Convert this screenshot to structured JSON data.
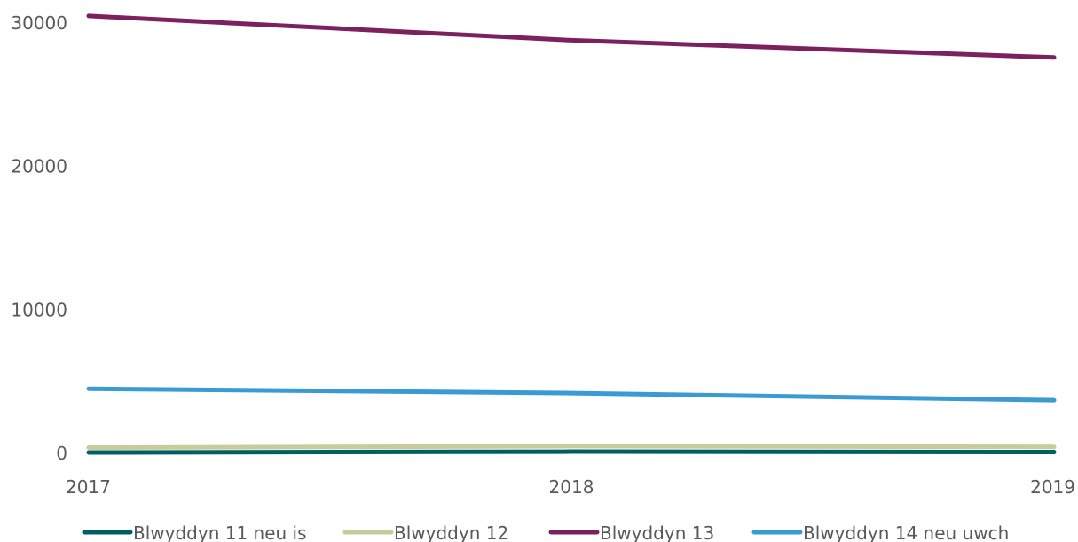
{
  "chart_data": {
    "type": "line",
    "title": "",
    "xlabel": "",
    "ylabel": "",
    "x": [
      "2017",
      "2018",
      "2019"
    ],
    "ylim": [
      0,
      30000
    ],
    "yticks": [
      "0",
      "10000",
      "20000",
      "30000"
    ],
    "grid": false,
    "legend_position": "bottom",
    "series": [
      {
        "name": "Blwyddyn 11 neu is",
        "color": "#005f62",
        "values": [
          60,
          120,
          90
        ]
      },
      {
        "name": "Blwyddyn 12",
        "color": "#c8cc9a",
        "values": [
          400,
          500,
          450
        ]
      },
      {
        "name": "Blwyddyn 13",
        "color": "#7d2060",
        "values": [
          30500,
          28800,
          27600
        ]
      },
      {
        "name": "Blwyddyn 14 neu uwch",
        "color": "#3a9ad4",
        "values": [
          4500,
          4200,
          3700
        ]
      }
    ]
  }
}
